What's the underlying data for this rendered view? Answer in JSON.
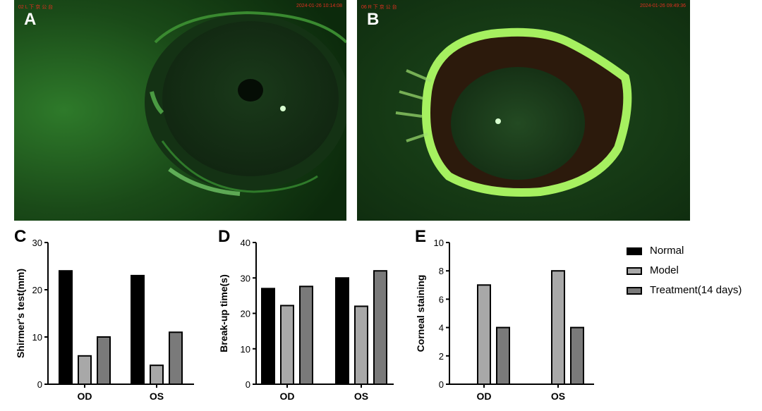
{
  "photos": [
    {
      "letter": "A",
      "camera_label": "02 L 下 京 公 台",
      "timestamp": "2024-01-26 10:14:08"
    },
    {
      "letter": "B",
      "camera_label": "06 R 下 京 公 台",
      "timestamp": "2024-01-26 09:49:36"
    }
  ],
  "legend": [
    {
      "name": "Normal",
      "color": "#000000"
    },
    {
      "name": "Model",
      "color": "#a8a8a8"
    },
    {
      "name": "Treatment(14 days)",
      "color": "#7a7a7a"
    }
  ],
  "chart_data": [
    {
      "panel": "C",
      "type": "bar",
      "categories": [
        "OD",
        "OS"
      ],
      "series": [
        {
          "name": "Normal",
          "values": [
            24,
            23
          ]
        },
        {
          "name": "Model",
          "values": [
            6,
            4
          ]
        },
        {
          "name": "Treatment(14 days)",
          "values": [
            10,
            11
          ]
        }
      ],
      "ylabel": "Shirmer's test(mm)",
      "ylim": [
        0,
        30
      ],
      "yticks": [
        0,
        10,
        20,
        30
      ]
    },
    {
      "panel": "D",
      "type": "bar",
      "categories": [
        "OD",
        "OS"
      ],
      "series": [
        {
          "name": "Normal",
          "values": [
            27,
            30
          ]
        },
        {
          "name": "Model",
          "values": [
            22.2,
            22
          ]
        },
        {
          "name": "Treatment(14 days)",
          "values": [
            27.6,
            32
          ]
        }
      ],
      "ylabel": "Break-up time(s)",
      "ylim": [
        0,
        40
      ],
      "yticks": [
        0,
        10,
        20,
        30,
        40
      ]
    },
    {
      "panel": "E",
      "type": "bar",
      "categories": [
        "OD",
        "OS"
      ],
      "series": [
        {
          "name": "Normal",
          "values": [
            0,
            0
          ]
        },
        {
          "name": "Model",
          "values": [
            7,
            8
          ]
        },
        {
          "name": "Treatment(14 days)",
          "values": [
            4,
            4
          ]
        }
      ],
      "ylabel": "Corneal staining",
      "ylim": [
        0,
        10
      ],
      "yticks": [
        0,
        2,
        4,
        6,
        8,
        10
      ]
    }
  ]
}
